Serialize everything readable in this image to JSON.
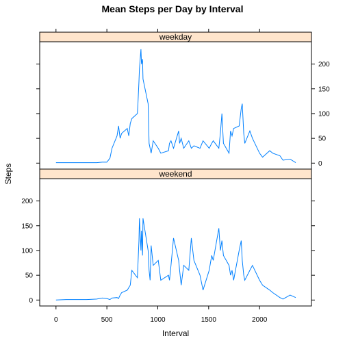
{
  "chart_data": {
    "type": "line",
    "title": "Mean Steps per Day by Interval",
    "xlabel": "Interval",
    "ylabel": "Steps",
    "xlim": [
      -160,
      2510
    ],
    "ylim": [
      -12,
      245
    ],
    "x_ticks": [
      0,
      500,
      1000,
      1500,
      2000
    ],
    "y_ticks": [
      0,
      50,
      100,
      150,
      200
    ],
    "line_color": "#0080ff",
    "strip_color": "#ffe5cc",
    "panels": [
      {
        "name": "weekday",
        "series": {
          "name": "",
          "x": [
            0,
            100,
            200,
            300,
            400,
            455,
            500,
            530,
            550,
            600,
            615,
            630,
            645,
            700,
            715,
            730,
            745,
            800,
            805,
            815,
            820,
            835,
            840,
            850,
            855,
            905,
            915,
            925,
            935,
            955,
            1005,
            1030,
            1105,
            1115,
            1130,
            1155,
            1205,
            1215,
            1230,
            1255,
            1305,
            1330,
            1355,
            1415,
            1445,
            1505,
            1530,
            1545,
            1600,
            1615,
            1630,
            1645,
            1700,
            1715,
            1730,
            1745,
            1800,
            1820,
            1830,
            1845,
            1855,
            1905,
            1930,
            2000,
            2030,
            2100,
            2130,
            2200,
            2230,
            2300,
            2355
          ],
          "y": [
            1,
            1,
            1,
            1,
            1,
            2,
            2,
            10,
            30,
            55,
            75,
            50,
            60,
            70,
            55,
            80,
            90,
            100,
            120,
            165,
            190,
            230,
            200,
            210,
            170,
            120,
            40,
            30,
            20,
            45,
            30,
            20,
            25,
            40,
            45,
            30,
            65,
            40,
            50,
            30,
            45,
            30,
            35,
            30,
            45,
            30,
            40,
            45,
            30,
            60,
            100,
            40,
            20,
            65,
            55,
            70,
            75,
            110,
            120,
            60,
            40,
            65,
            50,
            20,
            12,
            25,
            20,
            15,
            6,
            8,
            1
          ]
        }
      },
      {
        "name": "weekend",
        "series": {
          "name": "",
          "x": [
            0,
            100,
            200,
            300,
            400,
            455,
            500,
            530,
            550,
            600,
            615,
            630,
            645,
            700,
            730,
            745,
            800,
            815,
            820,
            835,
            840,
            850,
            855,
            905,
            915,
            925,
            935,
            955,
            1005,
            1030,
            1105,
            1115,
            1130,
            1155,
            1205,
            1215,
            1230,
            1255,
            1305,
            1330,
            1355,
            1415,
            1445,
            1505,
            1530,
            1545,
            1600,
            1615,
            1630,
            1645,
            1700,
            1715,
            1730,
            1745,
            1800,
            1820,
            1830,
            1845,
            1855,
            1905,
            1930,
            2000,
            2030,
            2100,
            2130,
            2200,
            2230,
            2300,
            2355
          ],
          "y": [
            0,
            1,
            1,
            1,
            2,
            4,
            3,
            1,
            4,
            5,
            3,
            10,
            15,
            20,
            30,
            60,
            45,
            120,
            165,
            100,
            140,
            90,
            165,
            100,
            60,
            40,
            110,
            70,
            80,
            40,
            50,
            40,
            70,
            125,
            80,
            60,
            30,
            70,
            60,
            125,
            80,
            50,
            20,
            60,
            90,
            80,
            145,
            100,
            120,
            90,
            70,
            50,
            60,
            40,
            100,
            120,
            80,
            50,
            40,
            60,
            70,
            40,
            30,
            20,
            15,
            5,
            2,
            10,
            5
          ]
        }
      }
    ]
  }
}
